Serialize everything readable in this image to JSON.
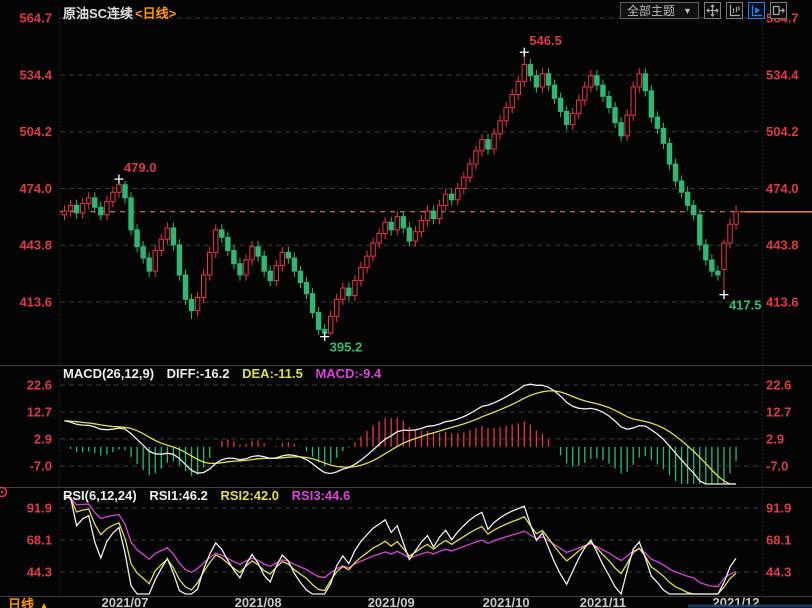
{
  "window": {
    "title": "原油SC连续",
    "period_tag": "<日线>"
  },
  "toolbar": {
    "theme_label": "全部主题",
    "dropdown_arrow": "▼",
    "icons": [
      "crosshair-move",
      "axis-scale",
      "axis-scale-active",
      "pane-export"
    ],
    "active_icon_color": "#2f7fe8"
  },
  "colors": {
    "background": "#040404",
    "up": "#e83547",
    "down": "#2eb873",
    "axis_label": "#dd3a46",
    "green_label": "#2fbf71",
    "orange": "#ff8f3f",
    "period_orange": "#ff9900",
    "yellow": "#dfdf4e",
    "magenta": "#d944d9",
    "white_line": "#efefef",
    "grid": "#3a3a3a",
    "separator": "#3f3f3f",
    "date_label": "#c9c9c9",
    "title": "#e0e0e0",
    "scrollbar_blue": "#1a3a6e"
  },
  "main_chart": {
    "y_labels": [
      "564.7",
      "534.4",
      "504.2",
      "474.0",
      "443.8",
      "413.6"
    ]
  },
  "macd_panel": {
    "label": "MACD(26,12,9)",
    "diff": "DIFF:-16.2",
    "dea": "DEA:-11.5",
    "macd": "MACD:-9.4",
    "y_labels": [
      "22.6",
      "12.7",
      "2.9",
      "-7.0"
    ]
  },
  "rsi_panel": {
    "label": "RSI(6,12,24)",
    "rsi1": "RSI1:46.2",
    "rsi2": "RSI2:42.0",
    "rsi3": "RSI3:44.6",
    "y_labels": [
      "91.9",
      "68.1",
      "44.3"
    ]
  },
  "bottom_axis": {
    "period_label": "日线",
    "arrow": "▲",
    "dates": [
      "2021/07",
      "2021/08",
      "2021/09",
      "2021/10",
      "2021/11",
      "2021/12"
    ]
  },
  "chart_data": {
    "type": "candlestick",
    "title": "原油SC连续 日线",
    "x_tick_labels": [
      "2021/07",
      "2021/08",
      "2021/09",
      "2021/10",
      "2021/11",
      "2021/12"
    ],
    "x_tick_indices": [
      10,
      32,
      54,
      73,
      89,
      111
    ],
    "y_ticks": [
      564.7,
      534.4,
      504.2,
      474.0,
      443.8,
      413.6
    ],
    "last_price": 461.6,
    "ohlc": {
      "open": [
        460,
        462,
        465,
        461,
        466,
        469,
        464,
        460,
        467,
        472,
        476,
        469,
        452,
        443,
        437,
        430,
        441,
        447,
        453,
        444,
        428,
        415,
        409,
        416,
        428,
        440,
        452,
        448,
        441,
        434,
        428,
        436,
        443,
        438,
        430,
        425,
        433,
        440,
        437,
        430,
        424,
        418,
        408,
        399,
        397,
        406,
        415,
        421,
        417,
        425,
        432,
        438,
        445,
        450,
        456,
        452,
        459,
        453,
        446,
        451,
        457,
        462,
        458,
        465,
        471,
        468,
        474,
        480,
        487,
        494,
        500,
        495,
        503,
        510,
        517,
        524,
        531,
        540,
        534,
        528,
        535,
        529,
        522,
        515,
        508,
        514,
        521,
        528,
        534,
        529,
        523,
        517,
        509,
        502,
        513,
        528,
        535,
        526,
        512,
        506,
        498,
        487,
        478,
        472,
        465,
        460,
        444,
        436,
        430,
        431,
        445,
        455
      ],
      "high": [
        465,
        468,
        468,
        469,
        472,
        472,
        467,
        470,
        475,
        479,
        478,
        472,
        455,
        446,
        440,
        444,
        450,
        456,
        456,
        447,
        431,
        418,
        419,
        431,
        443,
        455,
        455,
        451,
        444,
        437,
        439,
        446,
        446,
        441,
        433,
        436,
        443,
        443,
        440,
        433,
        427,
        421,
        411,
        402,
        409,
        418,
        424,
        424,
        428,
        435,
        441,
        448,
        453,
        459,
        459,
        462,
        462,
        456,
        454,
        460,
        465,
        465,
        468,
        474,
        474,
        477,
        483,
        490,
        497,
        503,
        503,
        506,
        513,
        520,
        527,
        534,
        546.5,
        543,
        537,
        538,
        538,
        532,
        525,
        518,
        517,
        524,
        531,
        537,
        537,
        532,
        526,
        520,
        512,
        516,
        531,
        538,
        538,
        529,
        515,
        509,
        501,
        490,
        481,
        475,
        468,
        463,
        447,
        439,
        433,
        447,
        458,
        465
      ],
      "low": [
        457,
        459,
        458,
        458,
        463,
        461,
        457,
        457,
        464,
        469,
        466,
        449,
        440,
        434,
        427,
        427,
        438,
        444,
        441,
        425,
        412,
        404.5,
        406,
        413,
        425,
        437,
        445,
        438,
        431,
        425,
        425,
        433,
        435,
        427,
        422,
        422,
        430,
        434,
        427,
        421,
        415,
        405,
        396,
        395.2,
        396,
        403,
        412,
        414,
        414,
        422,
        429,
        435,
        442,
        447,
        449,
        449,
        450,
        443,
        443,
        448,
        454,
        455,
        455,
        462,
        465,
        465,
        471,
        477,
        484,
        491,
        492,
        492,
        500,
        507,
        514,
        521,
        528,
        531,
        525,
        525,
        526,
        519,
        512,
        505,
        505,
        511,
        518,
        525,
        526,
        520,
        514,
        506,
        499,
        499,
        510,
        525,
        523,
        509,
        503,
        495,
        484,
        475,
        469,
        462,
        457,
        441,
        433,
        427,
        425,
        417.5,
        442,
        452
      ],
      "close": [
        462,
        465,
        461,
        466,
        469,
        464,
        460,
        467,
        472,
        476,
        469,
        452,
        443,
        437,
        430,
        441,
        447,
        453,
        444,
        428,
        415,
        409,
        416,
        428,
        440,
        452,
        448,
        441,
        434,
        428,
        436,
        443,
        438,
        430,
        425,
        433,
        440,
        437,
        430,
        424,
        418,
        408,
        399,
        397,
        406,
        415,
        421,
        417,
        425,
        432,
        438,
        445,
        450,
        456,
        452,
        459,
        453,
        446,
        451,
        457,
        462,
        458,
        465,
        471,
        468,
        474,
        480,
        487,
        494,
        500,
        495,
        503,
        510,
        517,
        524,
        531,
        540,
        534,
        528,
        535,
        529,
        522,
        515,
        508,
        514,
        521,
        528,
        534,
        529,
        523,
        517,
        509,
        502,
        513,
        528,
        535,
        526,
        512,
        506,
        498,
        487,
        478,
        472,
        465,
        460,
        444,
        436,
        430,
        428,
        445,
        455,
        461.6
      ]
    },
    "annotations": [
      {
        "text": "479.0",
        "index": 9,
        "price": 479.0,
        "place": "above",
        "color": "up"
      },
      {
        "text": "546.5",
        "index": 76,
        "price": 546.5,
        "place": "above",
        "color": "up"
      },
      {
        "text": "395.2",
        "index": 43,
        "price": 395.2,
        "place": "below",
        "color": "down"
      },
      {
        "text": "417.5",
        "index": 109,
        "price": 417.5,
        "place": "below",
        "color": "down"
      }
    ],
    "indicators": {
      "macd": {
        "params": [
          26,
          12,
          9
        ],
        "diff": -16.2,
        "dea": -11.5,
        "macd": -9.4,
        "y_ticks": [
          22.6,
          12.7,
          2.9,
          -7.0
        ],
        "diff_seed": 9.5
      },
      "rsi": {
        "params": [
          6,
          12,
          24
        ],
        "rsi1": 46.2,
        "rsi2": 42.0,
        "rsi3": 44.6,
        "y_ticks": [
          91.9,
          68.1,
          44.3
        ]
      }
    }
  }
}
